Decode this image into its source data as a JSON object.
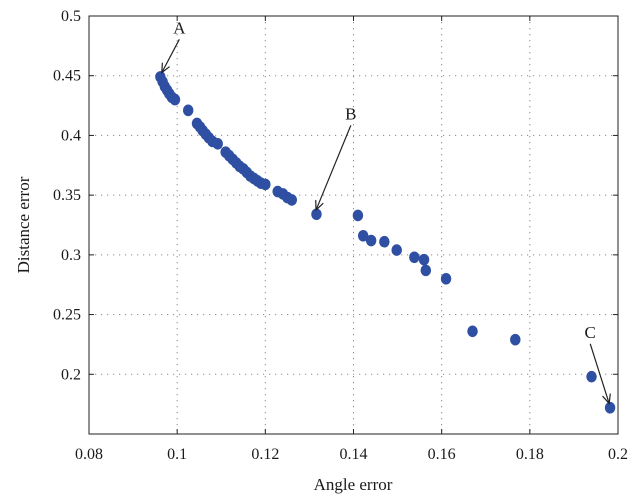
{
  "chart_data": {
    "type": "scatter",
    "title": "",
    "xlabel": "Angle error",
    "ylabel": "Distance error",
    "xlim": [
      0.08,
      0.2
    ],
    "ylim": [
      0.15,
      0.5
    ],
    "xticks": [
      "0.08",
      "0.1",
      "0.12",
      "0.14",
      "0.16",
      "0.18",
      "0.2"
    ],
    "xtick_values": [
      0.08,
      0.1,
      0.12,
      0.14,
      0.16,
      0.18,
      0.2
    ],
    "yticks": [
      "0.2",
      "0.25",
      "0.3",
      "0.35",
      "0.4",
      "0.45",
      "0.5"
    ],
    "ytick_values": [
      0.2,
      0.25,
      0.3,
      0.35,
      0.4,
      0.45,
      0.5
    ],
    "grid": true,
    "marker_color": "#2f4fa3",
    "points": [
      [
        0.0962,
        0.449
      ],
      [
        0.0967,
        0.445
      ],
      [
        0.0972,
        0.441
      ],
      [
        0.0977,
        0.438
      ],
      [
        0.0982,
        0.435
      ],
      [
        0.0988,
        0.432
      ],
      [
        0.0995,
        0.43
      ],
      [
        0.1025,
        0.421
      ],
      [
        0.1045,
        0.41
      ],
      [
        0.1052,
        0.407
      ],
      [
        0.1058,
        0.404
      ],
      [
        0.1065,
        0.401
      ],
      [
        0.1072,
        0.398
      ],
      [
        0.108,
        0.395
      ],
      [
        0.1092,
        0.393
      ],
      [
        0.111,
        0.386
      ],
      [
        0.1118,
        0.383
      ],
      [
        0.1126,
        0.38
      ],
      [
        0.1134,
        0.377
      ],
      [
        0.1142,
        0.374
      ],
      [
        0.115,
        0.372
      ],
      [
        0.1158,
        0.369
      ],
      [
        0.1166,
        0.366
      ],
      [
        0.1174,
        0.364
      ],
      [
        0.1182,
        0.362
      ],
      [
        0.119,
        0.36
      ],
      [
        0.12,
        0.359
      ],
      [
        0.1228,
        0.353
      ],
      [
        0.124,
        0.351
      ],
      [
        0.125,
        0.348
      ],
      [
        0.126,
        0.346
      ],
      [
        0.1316,
        0.334
      ],
      [
        0.141,
        0.333
      ],
      [
        0.1422,
        0.316
      ],
      [
        0.144,
        0.312
      ],
      [
        0.147,
        0.311
      ],
      [
        0.1498,
        0.304
      ],
      [
        0.1538,
        0.298
      ],
      [
        0.156,
        0.296
      ],
      [
        0.1564,
        0.287
      ],
      [
        0.161,
        0.28
      ],
      [
        0.167,
        0.236
      ],
      [
        0.1767,
        0.229
      ],
      [
        0.194,
        0.198
      ],
      [
        0.1982,
        0.172
      ]
    ],
    "annotations": [
      {
        "label": "A",
        "text_x": 0.1005,
        "text_y": 0.4855,
        "tip_x": 0.0965,
        "tip_y": 0.4525
      },
      {
        "label": "B",
        "text_x": 0.1394,
        "text_y": 0.4135,
        "tip_x": 0.1315,
        "tip_y": 0.3375
      },
      {
        "label": "C",
        "text_x": 0.1937,
        "text_y": 0.2305,
        "tip_x": 0.198,
        "tip_y": 0.1755
      }
    ]
  }
}
